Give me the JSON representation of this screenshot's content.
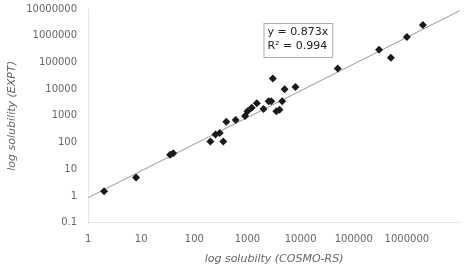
{
  "chart_data": {
    "type": "scatter",
    "title": "",
    "xlabel": "log solubilty (COSMO-RS)",
    "ylabel": "log solubility (EXPT)",
    "log": true,
    "grid": false,
    "xlim": [
      1,
      10000000
    ],
    "ylim": [
      0.1,
      10000000
    ],
    "xticks": [
      1,
      10,
      100,
      1000,
      10000,
      100000,
      1000000
    ],
    "yticks": [
      0.1,
      1,
      10,
      100,
      1000,
      10000,
      100000,
      1000000,
      10000000
    ],
    "series": [
      {
        "type": "line",
        "color": "#999999",
        "line_style": "solid",
        "x": [
          1,
          10000000
        ],
        "values": [
          0.873,
          8730000
        ]
      },
      {
        "type": "scatter",
        "color": "#1a1a1a",
        "marker": "diamond",
        "x": [
          2,
          8,
          35,
          40,
          200,
          250,
          300,
          350,
          400,
          600,
          900,
          1000,
          1200,
          1500,
          2000,
          2500,
          2800,
          3000,
          3500,
          4000,
          4500,
          5000,
          8000,
          50000,
          300000,
          500000,
          1000000,
          2000000
        ],
        "values": [
          1.5,
          5,
          35,
          40,
          110,
          200,
          230,
          110,
          600,
          700,
          1000,
          1500,
          2000,
          3000,
          1800,
          3500,
          3500,
          25000,
          1500,
          1700,
          3500,
          10000,
          12000,
          60000,
          300000,
          150000,
          900000,
          2500000
        ]
      }
    ],
    "annotations": [
      {
        "x": 2000,
        "y": 3000000,
        "text": "y = 0.873x\nR² = 0.994"
      }
    ]
  }
}
